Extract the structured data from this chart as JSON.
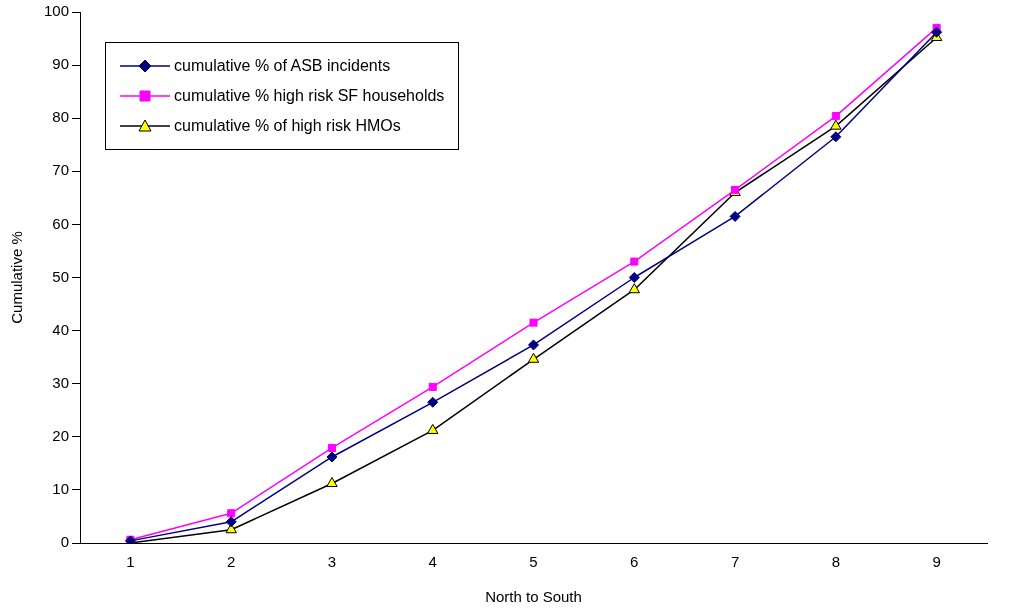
{
  "chart_data": {
    "type": "line",
    "xlabel": "North to South",
    "ylabel": "Cumulative %",
    "categories": [
      "1",
      "2",
      "3",
      "4",
      "5",
      "6",
      "7",
      "8",
      "9"
    ],
    "ylim": [
      0,
      100
    ],
    "yticks": [
      0,
      10,
      20,
      30,
      40,
      50,
      60,
      70,
      80,
      90,
      100
    ],
    "grid": false,
    "legend": "top left",
    "line_style": "solid",
    "series": [
      {
        "name": "cumulative % of ASB incidents",
        "color": "#000080",
        "marker": "diamond",
        "values": [
          0.4,
          4,
          16.2,
          26.5,
          37.3,
          50,
          61.5,
          76.5,
          96.2
        ]
      },
      {
        "name": "cumulative % high risk SF households",
        "color": "#ff00ff",
        "marker": "square",
        "values": [
          0.6,
          5.6,
          17.9,
          29.4,
          41.5,
          53,
          66.5,
          80.4,
          97
        ]
      },
      {
        "name": "cumulative % of high risk HMOs",
        "color": "#000000",
        "marker": "triangle",
        "values": [
          0,
          2.5,
          11.2,
          21.2,
          34.6,
          47.7,
          66,
          78.5,
          95.2
        ]
      }
    ]
  }
}
